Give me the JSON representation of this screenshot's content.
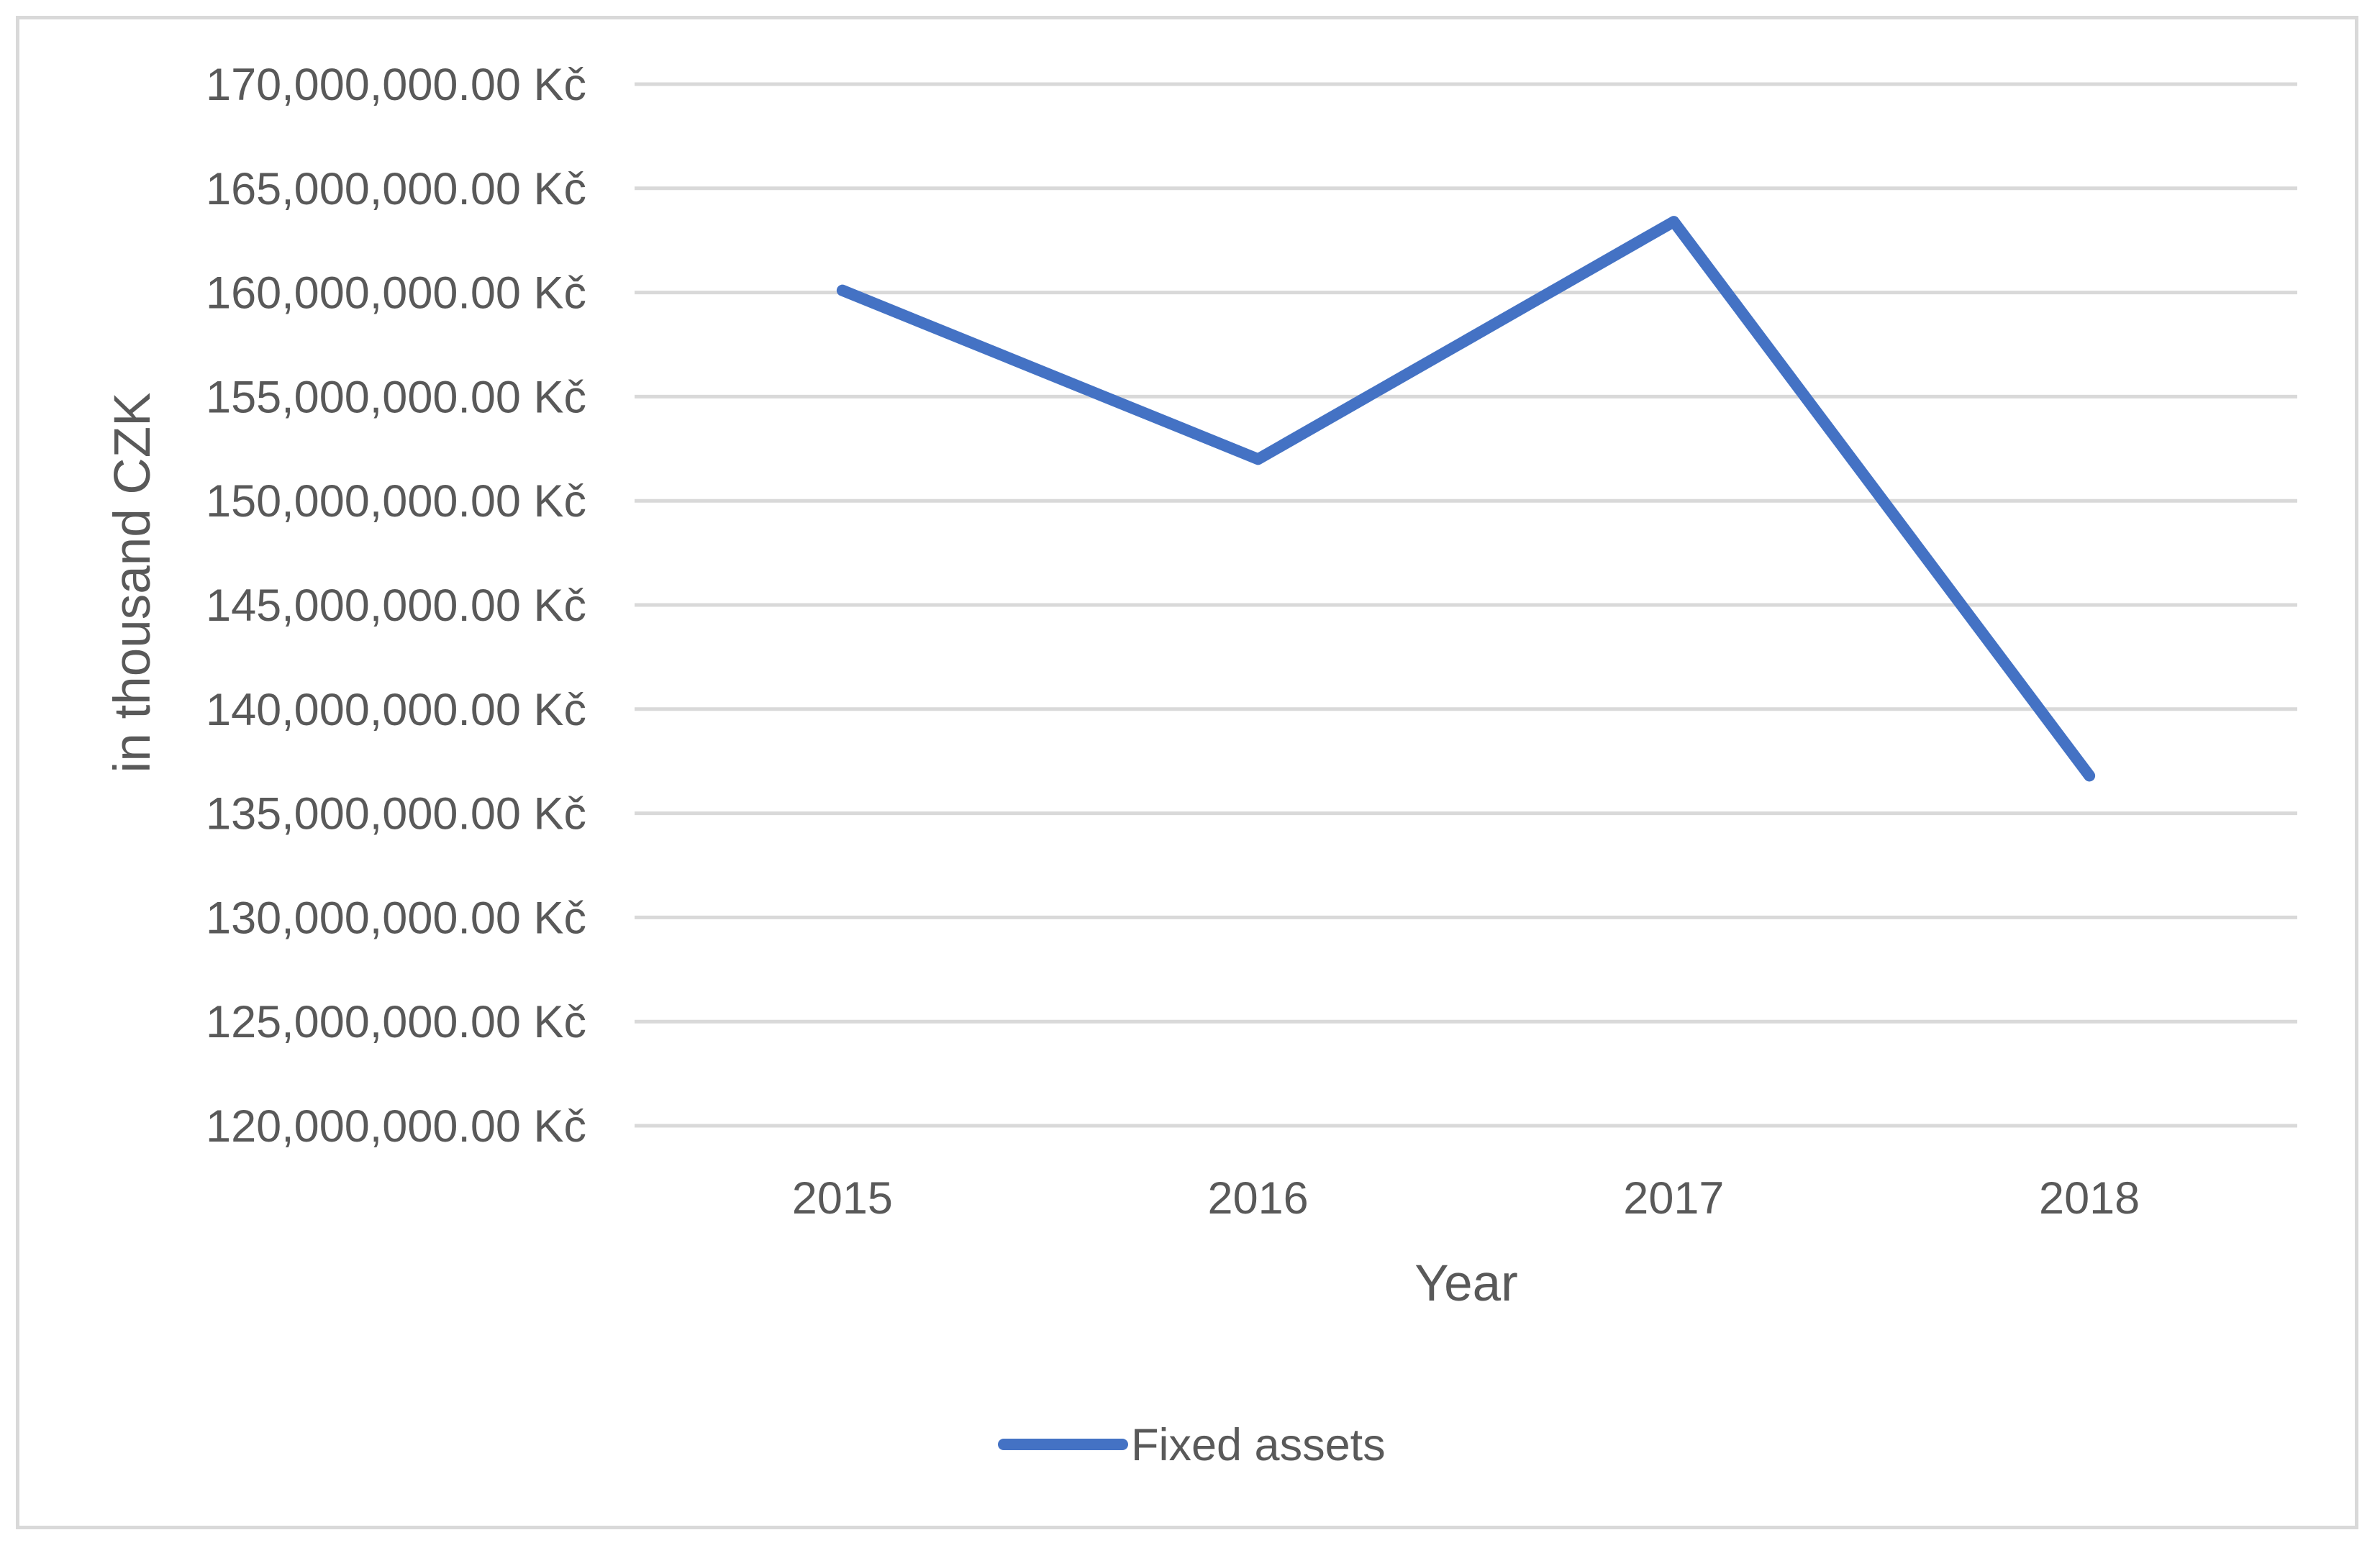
{
  "chart_data": {
    "type": "line",
    "title": "",
    "xlabel": "Year",
    "ylabel": "in thousand CZK",
    "categories": [
      "2015",
      "2016",
      "2017",
      "2018"
    ],
    "ylim": [
      120000000,
      170000000
    ],
    "ytick_values": [
      120000000,
      125000000,
      130000000,
      135000000,
      140000000,
      145000000,
      150000000,
      155000000,
      160000000,
      165000000,
      170000000
    ],
    "ytick_labels": [
      "120,000,000.00 Kč",
      "125,000,000.00 Kč",
      "130,000,000.00 Kč",
      "135,000,000.00 Kč",
      "140,000,000.00 Kč",
      "145,000,000.00 Kč",
      "150,000,000.00 Kč",
      "155,000,000.00 Kč",
      "160,000,000.00 Kč",
      "165,000,000.00 Kč",
      "170,000,000.00 Kč"
    ],
    "series": [
      {
        "name": "Fixed assets",
        "values": [
          160100000,
          152000000,
          163400000,
          136800000
        ],
        "color": "#4472c4"
      }
    ],
    "grid": true,
    "legend_position": "bottom"
  }
}
